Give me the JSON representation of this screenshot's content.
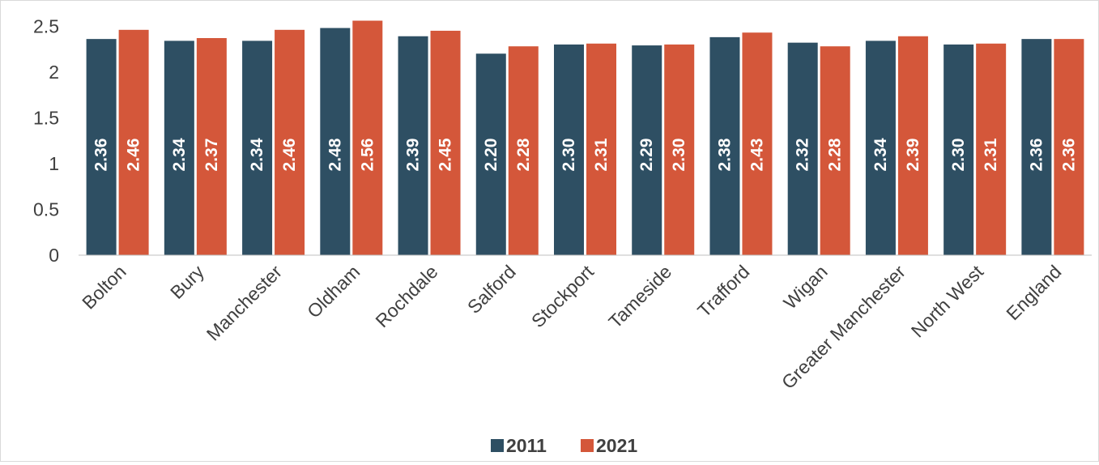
{
  "chart_data": {
    "type": "bar",
    "categories": [
      "Bolton",
      "Bury",
      "Manchester",
      "Oldham",
      "Rochdale",
      "Salford",
      "Stockport",
      "Tameside",
      "Trafford",
      "Wigan",
      "Greater Manchester",
      "North West",
      "England"
    ],
    "series": [
      {
        "name": "2011",
        "color": "#2e4f63",
        "values": [
          2.36,
          2.34,
          2.34,
          2.48,
          2.39,
          2.2,
          2.3,
          2.29,
          2.38,
          2.32,
          2.34,
          2.3,
          2.36
        ],
        "labels": [
          "2.36",
          "2.34",
          "2.34",
          "2.48",
          "2.39",
          "2.20",
          "2.30",
          "2.29",
          "2.38",
          "2.32",
          "2.34",
          "2.30",
          "2.36"
        ]
      },
      {
        "name": "2021",
        "color": "#d4573a",
        "values": [
          2.46,
          2.37,
          2.46,
          2.56,
          2.45,
          2.28,
          2.31,
          2.3,
          2.43,
          2.28,
          2.39,
          2.31,
          2.36
        ],
        "labels": [
          "2.46",
          "2.37",
          "2.46",
          "2.56",
          "2.45",
          "2.28",
          "2.31",
          "2.30",
          "2.43",
          "2.28",
          "2.39",
          "2.31",
          "2.36"
        ]
      }
    ],
    "yticks": [
      "0",
      "0.5",
      "1",
      "1.5",
      "2",
      "2.5"
    ],
    "ytick_values": [
      0,
      0.5,
      1,
      1.5,
      2,
      2.5
    ],
    "ylim": [
      0,
      2.6
    ],
    "grid": false,
    "legend_position": "bottom",
    "title": "",
    "xlabel": "",
    "ylabel": ""
  }
}
